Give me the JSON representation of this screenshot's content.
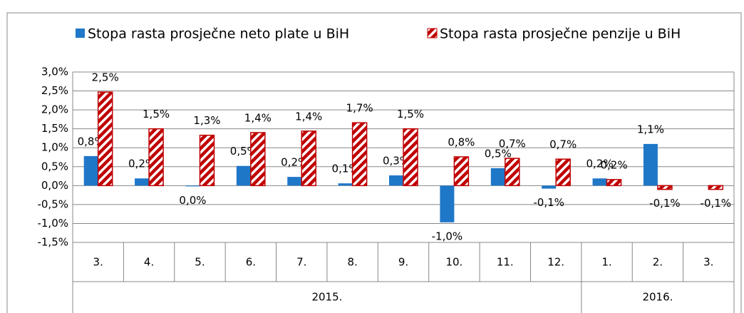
{
  "chart_data": {
    "type": "bar",
    "categories": [
      "3.",
      "4.",
      "5.",
      "6.",
      "7.",
      "8.",
      "9.",
      "10.",
      "11.",
      "12.",
      "1.",
      "2.",
      "3."
    ],
    "groups": [
      {
        "label": "2015.",
        "count": 10
      },
      {
        "label": "2016.",
        "count": 3
      }
    ],
    "series": [
      {
        "name": "Stopa rasta prosječne neto plate u BiH",
        "color": "#1f77c8",
        "pattern": "solid",
        "values": [
          0.78,
          0.19,
          -0.02,
          0.52,
          0.23,
          0.06,
          0.27,
          -0.97,
          0.46,
          -0.08,
          0.19,
          1.1,
          null
        ],
        "value_labels": [
          "0,8%",
          "0,2%",
          "0,0%",
          "0,5%",
          "0,2%",
          "0,1%",
          "0,3%",
          "-1,0%",
          "0,5%",
          "-0,1%",
          "0,2%",
          "1,1%",
          null
        ]
      },
      {
        "name": "Stopa rasta prosječne penzije u BiH",
        "color": "#c00000",
        "pattern": "hatched",
        "values": [
          2.47,
          1.5,
          1.33,
          1.4,
          1.44,
          1.66,
          1.5,
          0.76,
          0.72,
          0.7,
          0.16,
          -0.1,
          -0.1
        ],
        "value_labels": [
          "2,5%",
          "1,5%",
          "1,3%",
          "1,4%",
          "1,4%",
          "1,7%",
          "1,5%",
          "0,8%",
          "0,7%",
          "0,7%",
          "0,2%",
          "-0,1%",
          "-0,1%"
        ]
      }
    ],
    "ylim": [
      -1.5,
      3.0
    ],
    "yticks": [
      {
        "value": 3.0,
        "label": "3,0%"
      },
      {
        "value": 2.5,
        "label": "2,5%"
      },
      {
        "value": 2.0,
        "label": "2,0%"
      },
      {
        "value": 1.5,
        "label": "1,5%"
      },
      {
        "value": 1.0,
        "label": "1,0%"
      },
      {
        "value": 0.5,
        "label": "0,5%"
      },
      {
        "value": 0.0,
        "label": "0,0%"
      },
      {
        "value": -0.5,
        "label": "-0,5%"
      },
      {
        "value": -1.0,
        "label": "-1,0%"
      },
      {
        "value": -1.5,
        "label": "-1,5%"
      }
    ],
    "grid": true,
    "legend": "top"
  }
}
